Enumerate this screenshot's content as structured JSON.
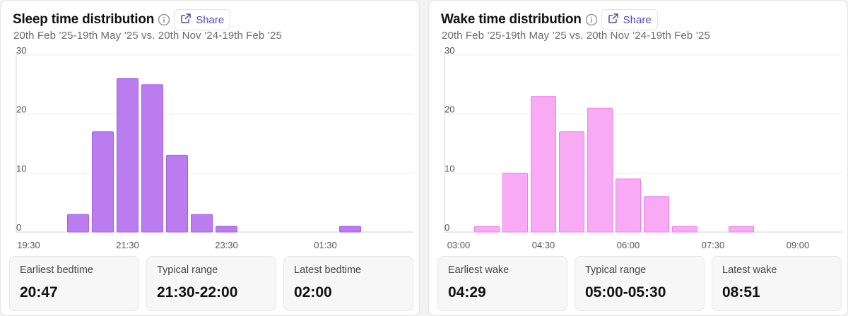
{
  "panels": [
    {
      "title": "Sleep time distribution",
      "share_label": "Share",
      "subtitle": "20th Feb ’25-19th May ’25 vs. 20th Nov ’24-19th Feb ’25",
      "stats": [
        {
          "label": "Earliest bedtime",
          "value": "20:47"
        },
        {
          "label": "Typical range",
          "value": "21:30-22:00"
        },
        {
          "label": "Latest bedtime",
          "value": "02:00"
        }
      ]
    },
    {
      "title": "Wake time distribution",
      "share_label": "Share",
      "subtitle": "20th Feb ’25-19th May ’25 vs. 20th Nov ’24-19th Feb ’25",
      "stats": [
        {
          "label": "Earliest wake",
          "value": "04:29"
        },
        {
          "label": "Typical range",
          "value": "05:00-05:30"
        },
        {
          "label": "Latest wake",
          "value": "08:51"
        }
      ]
    }
  ],
  "chart_data": [
    {
      "type": "bar",
      "title": "Sleep time distribution",
      "categories": [
        "19:30",
        "20:00",
        "20:30",
        "21:00",
        "21:30",
        "22:00",
        "22:30",
        "23:00",
        "23:30",
        "00:00",
        "00:30",
        "01:00",
        "01:30",
        "02:00",
        "02:30"
      ],
      "values": [
        0,
        0,
        3,
        17,
        26,
        25,
        13,
        3,
        1,
        0,
        0,
        0,
        0,
        1,
        0
      ],
      "x_tick_labels": [
        "19:30",
        "21:30",
        "23:30",
        "01:30"
      ],
      "y_ticks": [
        0,
        10,
        20,
        30
      ],
      "ylim": [
        0,
        30
      ],
      "grid": true,
      "color": "#bb7cf0",
      "stroke": "#a45fe0"
    },
    {
      "type": "bar",
      "title": "Wake time distribution",
      "categories": [
        "03:00",
        "03:30",
        "04:00",
        "04:30",
        "05:00",
        "05:30",
        "06:00",
        "06:30",
        "07:00",
        "07:30",
        "08:00",
        "08:30",
        "09:00"
      ],
      "values": [
        0,
        1,
        10,
        23,
        17,
        21,
        9,
        6,
        1,
        0,
        1,
        0,
        0
      ],
      "x_tick_labels": [
        "03:00",
        "04:30",
        "06:00",
        "07:30",
        "09:00"
      ],
      "y_ticks": [
        0,
        10,
        20,
        30
      ],
      "ylim": [
        0,
        30
      ],
      "grid": true,
      "color": "#f9aaf5",
      "stroke": "#f07eea"
    }
  ]
}
